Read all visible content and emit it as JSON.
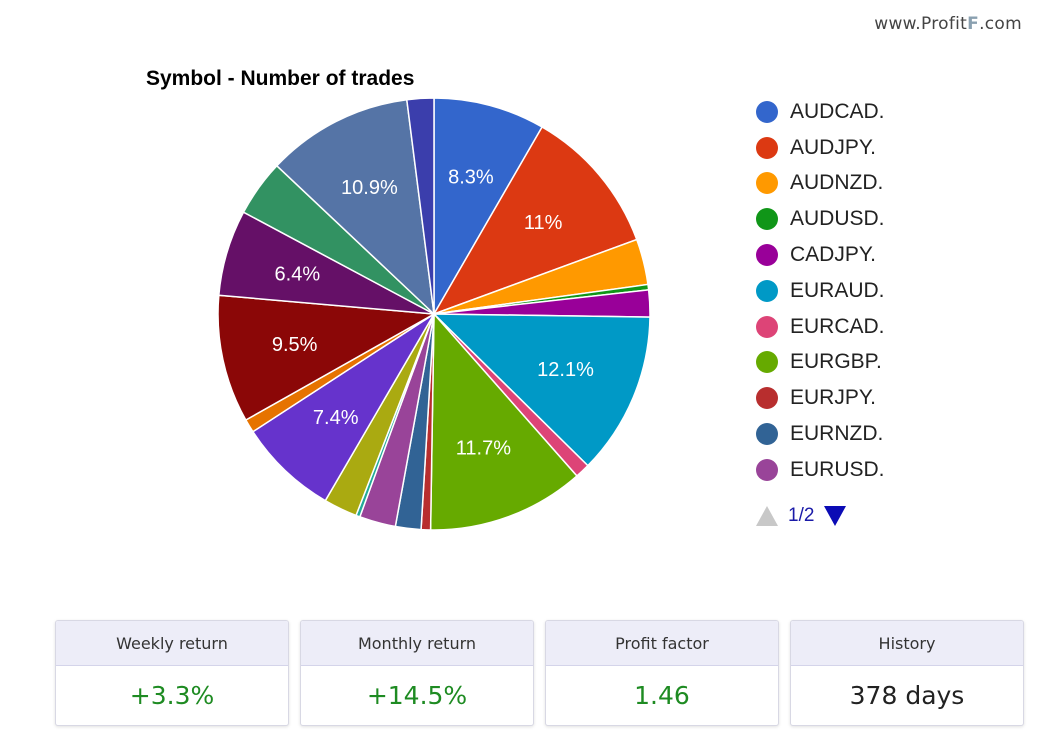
{
  "brand": {
    "prefix": "www.Profit",
    "mark": "F",
    "suffix": ".com"
  },
  "chart_data": {
    "type": "pie",
    "title": "Symbol - Number of trades",
    "slices": [
      {
        "name": "AUDCAD.",
        "value": 8.3,
        "label": "8.3%",
        "color": "#3366cc"
      },
      {
        "name": "AUDJPY.",
        "value": 11.0,
        "label": "11%",
        "color": "#dc3912"
      },
      {
        "name": "AUDNZD.",
        "value": 3.4,
        "label": "",
        "color": "#ff9900"
      },
      {
        "name": "AUDUSD.",
        "value": 0.4,
        "label": "",
        "color": "#109618"
      },
      {
        "name": "CADJPY.",
        "value": 2.0,
        "label": "",
        "color": "#990099"
      },
      {
        "name": "EURAUD.",
        "value": 12.1,
        "label": "12.1%",
        "color": "#0099c6"
      },
      {
        "name": "EURCAD.",
        "value": 1.1,
        "label": "",
        "color": "#dd4477"
      },
      {
        "name": "EURGBP.",
        "value": 11.7,
        "label": "11.7%",
        "color": "#66aa00"
      },
      {
        "name": "EURJPY.",
        "value": 0.7,
        "label": "",
        "color": "#b82e2e"
      },
      {
        "name": "EURNZD.",
        "value": 1.9,
        "label": "",
        "color": "#316395"
      },
      {
        "name": "EURUSD.",
        "value": 2.7,
        "label": "",
        "color": "#994499"
      },
      {
        "name": "",
        "value": 0.3,
        "label": "",
        "color": "#22aa99"
      },
      {
        "name": "",
        "value": 2.5,
        "label": "",
        "color": "#aaaa11"
      },
      {
        "name": "",
        "value": 7.4,
        "label": "7.4%",
        "color": "#6633cc"
      },
      {
        "name": "",
        "value": 1.0,
        "label": "",
        "color": "#e67300"
      },
      {
        "name": "",
        "value": 9.5,
        "label": "9.5%",
        "color": "#8b0707"
      },
      {
        "name": "",
        "value": 6.4,
        "label": "6.4%",
        "color": "#651067"
      },
      {
        "name": "",
        "value": 4.2,
        "label": "",
        "color": "#329262"
      },
      {
        "name": "",
        "value": 10.9,
        "label": "10.9%",
        "color": "#5574a6"
      },
      {
        "name": "",
        "value": 2.0,
        "label": "",
        "color": "#3b3eac"
      }
    ],
    "legend": {
      "position": "right",
      "page": "1/2"
    }
  },
  "stats": [
    {
      "title": "Weekly return",
      "value": "+3.3%",
      "tone": "green"
    },
    {
      "title": "Monthly return",
      "value": "+14.5%",
      "tone": "green"
    },
    {
      "title": "Profit factor",
      "value": "1.46",
      "tone": "green"
    },
    {
      "title": "History",
      "value": "378 days",
      "tone": "dark"
    }
  ]
}
